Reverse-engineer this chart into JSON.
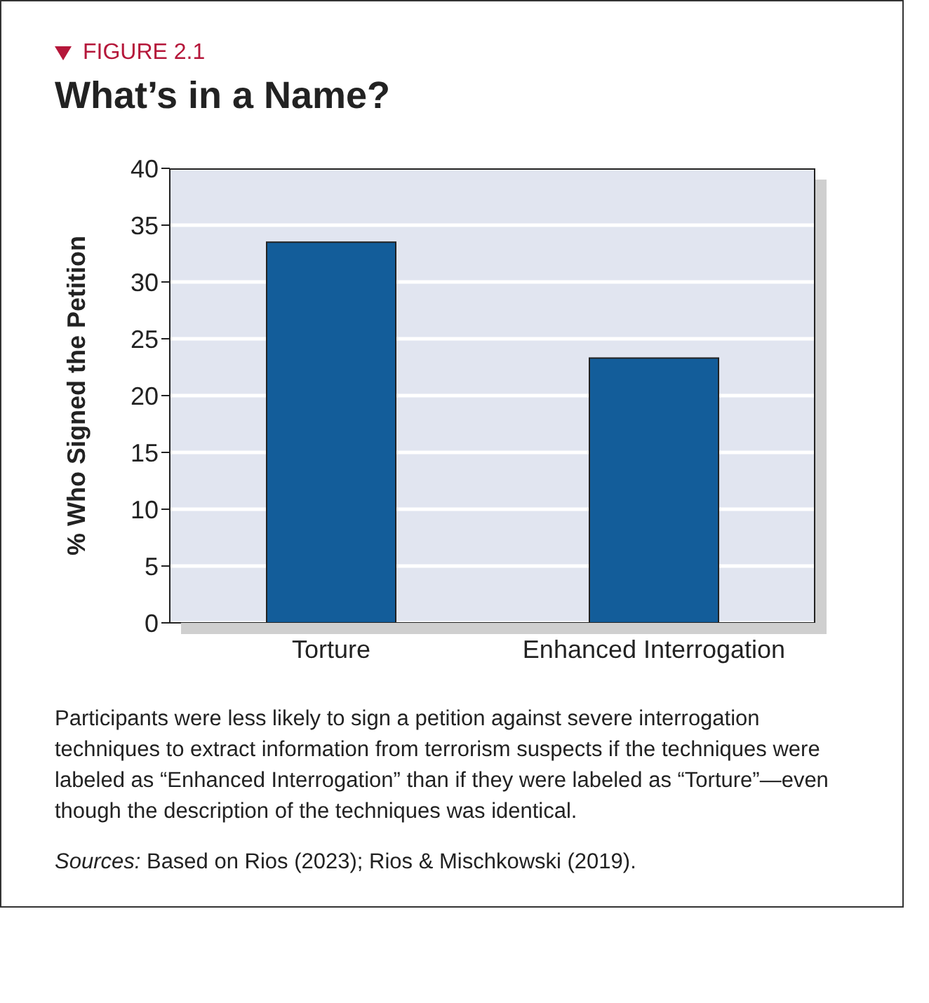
{
  "chart_data": {
    "type": "bar",
    "subtitle": "FIGURE 2.1",
    "title": "What’s in a Name?",
    "ylabel": "% Who Signed the Petition",
    "categories": [
      "Torture",
      "Enhanced Interrogation"
    ],
    "values": [
      33.5,
      23.3
    ],
    "color": "#135d9a",
    "ylim": [
      0,
      40
    ],
    "yticks": [
      0,
      5,
      10,
      15,
      20,
      25,
      30,
      35,
      40
    ],
    "grid": "y",
    "annotations": [
      "Participants were less likely to sign a petition against severe interrogation techniques to extract information from terrorism suspects if the techniques were labeled as “Enhanced Interrogation” than if they were labeled as “Torture”—even though the description of the techniques was identical.",
      "Sources: Based on Rios (2023); Rios & Mischkowski (2019)."
    ]
  }
}
